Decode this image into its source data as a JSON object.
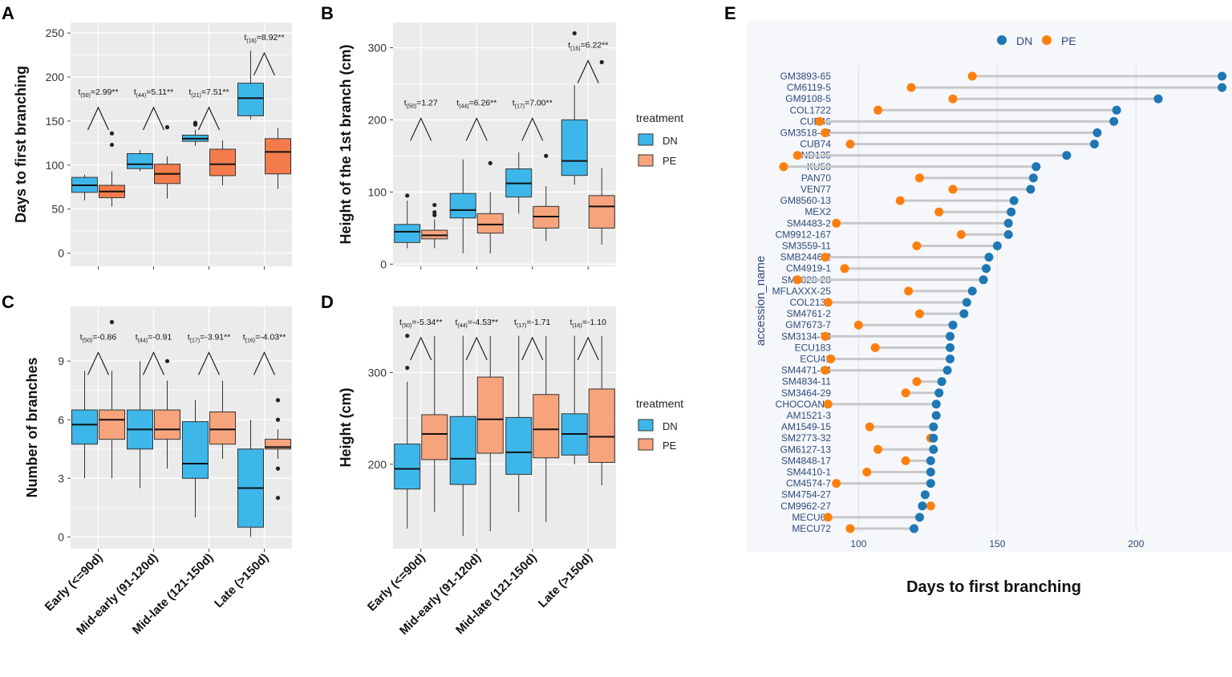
{
  "figure": {
    "panel_labels": [
      "A",
      "B",
      "C",
      "D",
      "E"
    ],
    "legend_title": "treatment",
    "treatments": [
      "DN",
      "PE"
    ],
    "colors": {
      "dn_box": "#3DB7EA",
      "pe_box_A": "#F47C4C",
      "pe_box": "#F7A47D",
      "panel_bg": "#EBEBEB",
      "grid": "#FFFFFF",
      "dn_dot": "#1F77B4",
      "pe_dot": "#FF7F0E",
      "segment": "#C8C8C8",
      "e_bg": "#F5F7FA",
      "e_axis_text": "#2F4B7C"
    }
  },
  "chart_data": [
    {
      "id": "A",
      "type": "boxplot",
      "ylabel": "Days to first branching",
      "ylim": [
        -15,
        262
      ],
      "yticks": [
        0,
        50,
        100,
        150,
        200,
        250
      ],
      "categories": [
        "Early (<=90d)",
        "Mid-early (91-120d)",
        "Mid-late (121-150d)",
        "Late (>150d)"
      ],
      "annotations": [
        {
          "df": "50",
          "text": "=2.99**"
        },
        {
          "df": "44",
          "text": "=5.11**"
        },
        {
          "df": "21",
          "text": "=7.51**"
        },
        {
          "df": "16",
          "text": "=8.92**"
        }
      ],
      "anno_y": [
        180,
        180,
        180,
        242
      ],
      "boxes": [
        {
          "trt": "DN",
          "cat": 0,
          "q1": 69,
          "med": 77,
          "q3": 86,
          "lo": 60,
          "hi": 89,
          "out": []
        },
        {
          "trt": "PE",
          "cat": 0,
          "q1": 63,
          "med": 70,
          "q3": 77,
          "lo": 53,
          "hi": 93,
          "out": [
            123,
            136
          ]
        },
        {
          "trt": "DN",
          "cat": 1,
          "q1": 96,
          "med": 101,
          "q3": 113,
          "lo": 93,
          "hi": 117,
          "out": []
        },
        {
          "trt": "PE",
          "cat": 1,
          "q1": 79,
          "med": 90,
          "q3": 101,
          "lo": 62,
          "hi": 110,
          "out": [
            143
          ]
        },
        {
          "trt": "DN",
          "cat": 2,
          "q1": 127,
          "med": 130,
          "q3": 134,
          "lo": 122,
          "hi": 140,
          "out": [
            146,
            148
          ]
        },
        {
          "trt": "PE",
          "cat": 2,
          "q1": 88,
          "med": 101,
          "q3": 118,
          "lo": 77,
          "hi": 128,
          "out": []
        },
        {
          "trt": "DN",
          "cat": 3,
          "q1": 156,
          "med": 176,
          "q3": 193,
          "lo": 152,
          "hi": 230,
          "out": []
        },
        {
          "trt": "PE",
          "cat": 3,
          "q1": 90,
          "med": 115,
          "q3": 130,
          "lo": 73,
          "hi": 142,
          "out": []
        }
      ]
    },
    {
      "id": "B",
      "type": "boxplot",
      "ylabel": "Height of the 1st branch (cm)",
      "ylim": [
        -3,
        335
      ],
      "yticks": [
        0,
        100,
        200,
        300
      ],
      "categories": [
        "Early (<=90d)",
        "Mid-early (91-120d)",
        "Mid-late (121-150d)",
        "Late (>150d)"
      ],
      "annotations": [
        {
          "df": "50",
          "text": "=1.27"
        },
        {
          "df": "44",
          "text": "=6.26**"
        },
        {
          "df": "17",
          "text": "=7.00**"
        },
        {
          "df": "16",
          "text": "=6.22**"
        }
      ],
      "anno_y": [
        220,
        220,
        220,
        300
      ],
      "boxes": [
        {
          "trt": "DN",
          "cat": 0,
          "q1": 30,
          "med": 45,
          "q3": 55,
          "lo": 22,
          "hi": 88,
          "out": [
            95
          ]
        },
        {
          "trt": "PE",
          "cat": 0,
          "q1": 35,
          "med": 40,
          "q3": 47,
          "lo": 22,
          "hi": 62,
          "out": [
            68,
            72,
            82
          ]
        },
        {
          "trt": "DN",
          "cat": 1,
          "q1": 64,
          "med": 75,
          "q3": 98,
          "lo": 15,
          "hi": 145,
          "out": []
        },
        {
          "trt": "PE",
          "cat": 1,
          "q1": 43,
          "med": 55,
          "q3": 70,
          "lo": 15,
          "hi": 100,
          "out": [
            140
          ]
        },
        {
          "trt": "DN",
          "cat": 2,
          "q1": 93,
          "med": 112,
          "q3": 132,
          "lo": 70,
          "hi": 155,
          "out": []
        },
        {
          "trt": "PE",
          "cat": 2,
          "q1": 50,
          "med": 66,
          "q3": 80,
          "lo": 32,
          "hi": 108,
          "out": [
            150
          ]
        },
        {
          "trt": "DN",
          "cat": 3,
          "q1": 123,
          "med": 143,
          "q3": 200,
          "lo": 110,
          "hi": 248,
          "out": [
            320
          ]
        },
        {
          "trt": "PE",
          "cat": 3,
          "q1": 50,
          "med": 80,
          "q3": 95,
          "lo": 27,
          "hi": 133,
          "out": [
            280
          ]
        }
      ]
    },
    {
      "id": "C",
      "type": "boxplot",
      "ylabel": "Number of branches",
      "ylim": [
        -0.6,
        11.8
      ],
      "yticks": [
        0,
        3,
        6,
        9
      ],
      "categories": [
        "Early (<=90d)",
        "Mid-early (91-120d)",
        "Mid-late (121-150d)",
        "Late (>150d)"
      ],
      "annotations": [
        {
          "df": "50",
          "text": "=-0.86"
        },
        {
          "df": "44",
          "text": "=-0.91"
        },
        {
          "df": "17",
          "text": "=-3.91**"
        },
        {
          "df": "16",
          "text": "=-4.03**"
        }
      ],
      "anno_y": [
        10.1,
        10.1,
        10.1,
        10.1
      ],
      "boxes": [
        {
          "trt": "DN",
          "cat": 0,
          "q1": 4.75,
          "med": 5.75,
          "q3": 6.5,
          "lo": 3,
          "hi": 8.5,
          "out": []
        },
        {
          "trt": "PE",
          "cat": 0,
          "q1": 5,
          "med": 6,
          "q3": 6.5,
          "lo": 3,
          "hi": 8.5,
          "out": [
            11
          ]
        },
        {
          "trt": "DN",
          "cat": 1,
          "q1": 4.5,
          "med": 5.5,
          "q3": 6.5,
          "lo": 2.5,
          "hi": 9,
          "out": []
        },
        {
          "trt": "PE",
          "cat": 1,
          "q1": 5,
          "med": 5.5,
          "q3": 6.5,
          "lo": 3.5,
          "hi": 8,
          "out": [
            9
          ]
        },
        {
          "trt": "DN",
          "cat": 2,
          "q1": 3,
          "med": 3.75,
          "q3": 5.9,
          "lo": 1,
          "hi": 7,
          "out": []
        },
        {
          "trt": "PE",
          "cat": 2,
          "q1": 4.75,
          "med": 5.5,
          "q3": 6.4,
          "lo": 4,
          "hi": 8,
          "out": []
        },
        {
          "trt": "DN",
          "cat": 3,
          "q1": 0.5,
          "med": 2.5,
          "q3": 4.5,
          "lo": 0,
          "hi": 6,
          "out": []
        },
        {
          "trt": "PE",
          "cat": 3,
          "q1": 4.5,
          "med": 4.6,
          "q3": 5,
          "lo": 4,
          "hi": 5.5,
          "out": [
            2,
            3.5,
            6,
            7
          ]
        }
      ]
    },
    {
      "id": "D",
      "type": "boxplot",
      "ylabel": "Height (cm)",
      "ylim": [
        108,
        372
      ],
      "yticks": [
        200,
        300
      ],
      "categories": [
        "Early (<=90d)",
        "Mid-early (91-120d)",
        "Mid-late (121-150d)",
        "Late (>150d)"
      ],
      "annotations": [
        {
          "df": "50",
          "text": "=-5.34**"
        },
        {
          "df": "44",
          "text": "=-4.53**"
        },
        {
          "df": "17",
          "text": "=-1.71"
        },
        {
          "df": "16",
          "text": "=-1.10"
        }
      ],
      "anno_y": [
        352,
        352,
        352,
        352
      ],
      "boxes": [
        {
          "trt": "DN",
          "cat": 0,
          "q1": 173,
          "med": 195,
          "q3": 222,
          "lo": 130,
          "hi": 290,
          "out": [
            305,
            340
          ]
        },
        {
          "trt": "PE",
          "cat": 0,
          "q1": 205,
          "med": 233,
          "q3": 254,
          "lo": 148,
          "hi": 340,
          "out": []
        },
        {
          "trt": "DN",
          "cat": 1,
          "q1": 178,
          "med": 206,
          "q3": 252,
          "lo": 122,
          "hi": 340,
          "out": []
        },
        {
          "trt": "PE",
          "cat": 1,
          "q1": 212,
          "med": 249,
          "q3": 295,
          "lo": 127,
          "hi": 340,
          "out": []
        },
        {
          "trt": "DN",
          "cat": 2,
          "q1": 189,
          "med": 213,
          "q3": 251,
          "lo": 148,
          "hi": 340,
          "out": []
        },
        {
          "trt": "PE",
          "cat": 2,
          "q1": 207,
          "med": 238,
          "q3": 276,
          "lo": 137,
          "hi": 340,
          "out": []
        },
        {
          "trt": "DN",
          "cat": 3,
          "q1": 210,
          "med": 233,
          "q3": 255,
          "lo": 200,
          "hi": 340,
          "out": []
        },
        {
          "trt": "PE",
          "cat": 3,
          "q1": 202,
          "med": 230,
          "q3": 282,
          "lo": 177,
          "hi": 340,
          "out": []
        }
      ]
    },
    {
      "id": "E",
      "type": "dumbbell",
      "xlabel": "Days to first branching",
      "ylabel": "accession_name",
      "xlim": [
        60,
        234
      ],
      "xticks": [
        100,
        150,
        200
      ],
      "legend": [
        "DN",
        "PE"
      ],
      "accessions": [
        "GM3893-65",
        "CM6119-5",
        "GM9108-5",
        "COL1722",
        "CUB46",
        "GM3518-42",
        "CUB74",
        "IND135",
        "KU50",
        "PAN70",
        "VEN77",
        "GM8560-13",
        "MEX2",
        "SM4483-2",
        "CM9912-167",
        "SM3559-11",
        "SMB2446-2",
        "CM4919-1",
        "SM2828-28",
        "MFLAXXX-25",
        "COL2131",
        "SM4761-2",
        "GM7673-7",
        "SM3134-73",
        "ECU183",
        "ECU41",
        "SM4471-64",
        "SM4834-11",
        "SM3464-29",
        "CHOCOANA",
        "AM1521-3",
        "AM1549-15",
        "SM2773-32",
        "GM6127-13",
        "SM4848-17",
        "SM4410-1",
        "CM4574-7",
        "SM4754-27",
        "CM9962-27",
        "MECU64",
        "MECU72"
      ],
      "dn": [
        231,
        231,
        208,
        193,
        192,
        186,
        185,
        175,
        164,
        163,
        162,
        156,
        155,
        154,
        154,
        150,
        147,
        146,
        145,
        141,
        139,
        138,
        134,
        133,
        133,
        133,
        132,
        130,
        129,
        128,
        128,
        127,
        127,
        127,
        126,
        126,
        126,
        124,
        123,
        122,
        120
      ],
      "pe": [
        141,
        119,
        134,
        107,
        86,
        88,
        97,
        78,
        73,
        122,
        134,
        115,
        129,
        92,
        137,
        121,
        88,
        95,
        78,
        118,
        89,
        122,
        100,
        88,
        106,
        90,
        88,
        121,
        117,
        89,
        null,
        104,
        126,
        107,
        117,
        103,
        92,
        null,
        126,
        89,
        97
      ]
    }
  ]
}
